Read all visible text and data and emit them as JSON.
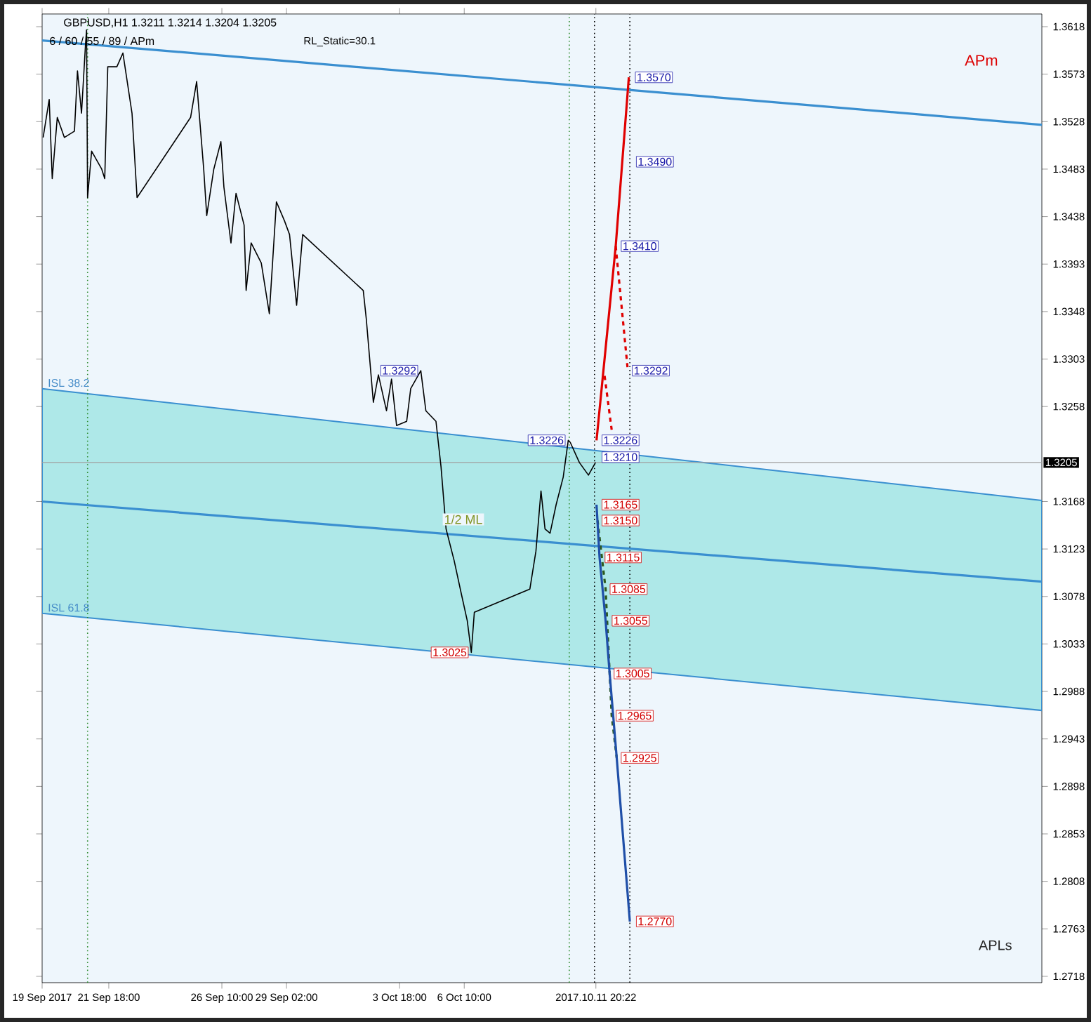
{
  "chart_data": {
    "type": "line",
    "title": "GBPUSD,H1 1.3211 1.3214 1.3204 1.3205",
    "subtitle": "6 / 60 / 55 / 89 / APm",
    "xlim": [
      "2017-09-19T00:00",
      "2017-10-30T06:00"
    ],
    "ylim": [
      1.2712,
      1.363
    ],
    "xticks": [
      {
        "value": "2017-09-19T00:00",
        "label": "19 Sep 2017"
      },
      {
        "value": "2017-09-21T18:00",
        "label": "21 Sep 18:00"
      },
      {
        "value": "2017-09-26T10:00",
        "label": "26 Sep 10:00"
      },
      {
        "value": "2017-09-29T02:00",
        "label": "29 Sep 02:00"
      },
      {
        "value": "2017-10-03T18:00",
        "label": "3 Oct 18:00"
      },
      {
        "value": "2017-10-06T10:00",
        "label": "6 Oct 10:00"
      },
      {
        "value": "2017-10-11T20:22",
        "label": "2017.10.11 20:22"
      }
    ],
    "yticks": [
      1.3618,
      1.3573,
      1.3528,
      1.3483,
      1.3438,
      1.3393,
      1.3348,
      1.3303,
      1.3258,
      1.3168,
      1.3123,
      1.3078,
      1.3033,
      1.2988,
      1.2943,
      1.2898,
      1.2853,
      1.2808,
      1.2763,
      1.2718
    ],
    "series": [
      {
        "color": "#3a8fd0",
        "x": [
          "2017-09-19T00:00",
          "2017-10-30T06:00"
        ],
        "values": [
          1.3168,
          1.3092
        ],
        "lower": [
          1.3062,
          1.297
        ],
        "upper": [
          1.3275,
          1.3169
        ]
      },
      {
        "color": "#3a8fd0",
        "x": [
          "2017-09-19T00:00",
          "2017-10-30T06:00"
        ],
        "values": [
          1.3605,
          1.3525
        ]
      },
      {
        "color": "#2d5a1e",
        "line_style": "dashed",
        "x": [
          "2017-10-11T22:00",
          "2017-10-12T06:00",
          "2017-10-12T10:00",
          "2017-10-12T12:00",
          "2017-10-12T17:00"
        ],
        "values": [
          1.315,
          1.3085,
          1.3005,
          1.2965,
          1.2925
        ]
      },
      {
        "color": "#000000",
        "x": [
          "2017-09-19T01:00",
          "2017-09-19T07:00",
          "2017-09-19T10:00",
          "2017-09-19T15:00",
          "2017-09-19T22:00",
          "2017-09-20T08:00",
          "2017-09-20T11:00",
          "2017-09-20T15:00",
          "2017-09-20T19:00",
          "2017-09-20T20:00",
          "2017-09-20T21:00",
          "2017-09-21T01:00",
          "2017-09-21T11:00",
          "2017-09-21T14:00",
          "2017-09-21T17:00",
          "2017-09-22T02:00",
          "2017-09-22T08:00",
          "2017-09-22T17:00",
          "2017-09-22T22:00",
          "2017-09-25T03:00",
          "2017-09-25T09:00",
          "2017-09-25T16:00",
          "2017-09-25T19:00",
          "2017-09-26T02:00",
          "2017-09-26T09:00",
          "2017-09-26T12:00",
          "2017-09-26T19:00",
          "2017-09-27T00:00",
          "2017-09-27T08:00",
          "2017-09-27T10:00",
          "2017-09-27T15:00",
          "2017-09-28T01:00",
          "2017-09-28T09:00",
          "2017-09-28T16:00",
          "2017-09-29T00:00",
          "2017-09-29T05:00",
          "2017-09-29T12:00",
          "2017-09-29T18:00",
          "2017-10-02T06:00",
          "2017-10-02T09:00",
          "2017-10-02T16:00",
          "2017-10-02T21:00",
          "2017-10-03T05:00",
          "2017-10-03T10:00",
          "2017-10-03T15:00",
          "2017-10-04T01:00",
          "2017-10-04T05:00",
          "2017-10-04T15:00",
          "2017-10-04T20:00",
          "2017-10-05T06:00",
          "2017-10-05T11:00",
          "2017-10-05T16:00",
          "2017-10-06T00:00",
          "2017-10-06T07:00",
          "2017-10-06T13:00",
          "2017-10-06T17:00",
          "2017-10-06T20:00",
          "2017-10-09T03:00",
          "2017-10-09T09:00",
          "2017-10-09T14:00",
          "2017-10-09T18:00",
          "2017-10-09T23:00",
          "2017-10-10T05:00",
          "2017-10-10T12:00",
          "2017-10-10T17:00",
          "2017-10-10T19:00",
          "2017-10-11T04:00",
          "2017-10-11T13:00",
          "2017-10-11T20:00"
        ],
        "values": [
          1.3513,
          1.3549,
          1.3474,
          1.3532,
          1.3513,
          1.3519,
          1.3576,
          1.3536,
          1.3602,
          1.3615,
          1.3456,
          1.35,
          1.3483,
          1.3474,
          1.358,
          1.358,
          1.3593,
          1.3536,
          1.3456,
          1.3532,
          1.3566,
          1.3483,
          1.3439,
          1.3483,
          1.3509,
          1.3466,
          1.3413,
          1.346,
          1.343,
          1.3368,
          1.3413,
          1.3394,
          1.3346,
          1.3452,
          1.3434,
          1.3421,
          1.3354,
          1.3421,
          1.3368,
          1.3341,
          1.3262,
          1.3288,
          1.3254,
          1.3284,
          1.324,
          1.3244,
          1.3275,
          1.3292,
          1.3254,
          1.3244,
          1.3201,
          1.3142,
          1.3112,
          1.3081,
          1.3055,
          1.3025,
          1.3063,
          1.3085,
          1.3121,
          1.3178,
          1.3142,
          1.3138,
          1.3165,
          1.3191,
          1.3226,
          1.3224,
          1.3205,
          1.3193,
          1.3205
        ]
      },
      {
        "color": "#e00000",
        "x": [
          "2017-10-11T21:00",
          "2017-10-12T16:00",
          "2017-10-13T05:00"
        ],
        "values": [
          1.3226,
          1.341,
          1.357
        ]
      },
      {
        "color": "#e00000",
        "line_style": "dashed",
        "x": [
          "2017-10-12T05:00",
          "2017-10-12T12:00",
          "2017-10-12T14:00",
          "2017-10-12T16:00",
          "2017-10-13T04:00"
        ],
        "values": [
          1.3287,
          1.3236,
          null,
          1.341,
          1.3292
        ]
      },
      {
        "color": "#1f4fa8",
        "x": [
          "2017-10-11T21:00",
          "2017-10-12T00:00",
          "2017-10-12T06:00",
          "2017-10-12T10:00",
          "2017-10-12T17:00",
          "2017-10-13T06:00"
        ],
        "values": [
          1.3165,
          1.3115,
          1.3055,
          1.3005,
          1.2925,
          1.277
        ]
      }
    ],
    "ref_lines": [
      {
        "axis": "y",
        "value": 1.3205,
        "label": "1.3205",
        "color": "#a0a0a0"
      },
      {
        "axis": "x",
        "value": "2017-10-11T19:00",
        "color": "#000000",
        "line_style": "dotted"
      },
      {
        "axis": "x",
        "value": "2017-10-13T06:00",
        "color": "#000000",
        "line_style": "dotted"
      },
      {
        "axis": "x",
        "value": "2017-09-20T21:00",
        "color": "#2e8b2e",
        "line_style": "dotted"
      },
      {
        "axis": "x",
        "value": "2017-10-10T18:00",
        "color": "#2e8b2e",
        "line_style": "dotted"
      }
    ],
    "annotations": [
      "APm",
      "RL_Static=30.1",
      "APLs",
      "1/2 ML",
      {
        "text": "ISL 38.2",
        "x": "2017-09-19T04:00",
        "y": 1.3275
      },
      {
        "text": "ISL 61.8",
        "x": "2017-09-19T04:00",
        "y": 1.3062
      },
      {
        "text": "1.3292",
        "x": "2017-10-04T15:00",
        "y": 1.3292
      },
      {
        "text": "1.3226",
        "x": "2017-10-10T17:00",
        "y": 1.3226
      },
      {
        "text": "1.3025",
        "x": "2017-10-06T17:00",
        "y": 1.3025
      },
      {
        "text": "1.3570",
        "x": "2017-10-13T07:00",
        "y": 1.357
      },
      {
        "text": "1.3490",
        "x": "2017-10-13T08:00",
        "y": 1.349
      },
      {
        "text": "1.3410",
        "x": "2017-10-12T17:00",
        "y": 1.341
      },
      {
        "text": "1.3292",
        "x": "2017-10-13T04:00",
        "y": 1.3292
      },
      {
        "text": "1.3226",
        "x": "2017-10-11T22:00",
        "y": 1.3226
      },
      {
        "text": "1.3210",
        "x": "2017-10-11T22:00",
        "y": 1.321
      },
      {
        "text": "1.3165",
        "x": "2017-10-11T22:00",
        "y": 1.3165
      },
      {
        "text": "1.3150",
        "x": "2017-10-11T22:00",
        "y": 1.315
      },
      {
        "text": "1.3115",
        "x": "2017-10-12T01:00",
        "y": 1.3115
      },
      {
        "text": "1.3085",
        "x": "2017-10-12T06:00",
        "y": 1.3085
      },
      {
        "text": "1.3055",
        "x": "2017-10-12T08:00",
        "y": 1.3055
      },
      {
        "text": "1.3005",
        "x": "2017-10-12T10:00",
        "y": 1.3005
      },
      {
        "text": "1.2965",
        "x": "2017-10-12T12:00",
        "y": 1.2965
      },
      {
        "text": "1.2925",
        "x": "2017-10-12T17:00",
        "y": 1.2925
      },
      {
        "text": "1.2770",
        "x": "2017-10-13T08:00",
        "y": 1.277
      }
    ]
  }
}
